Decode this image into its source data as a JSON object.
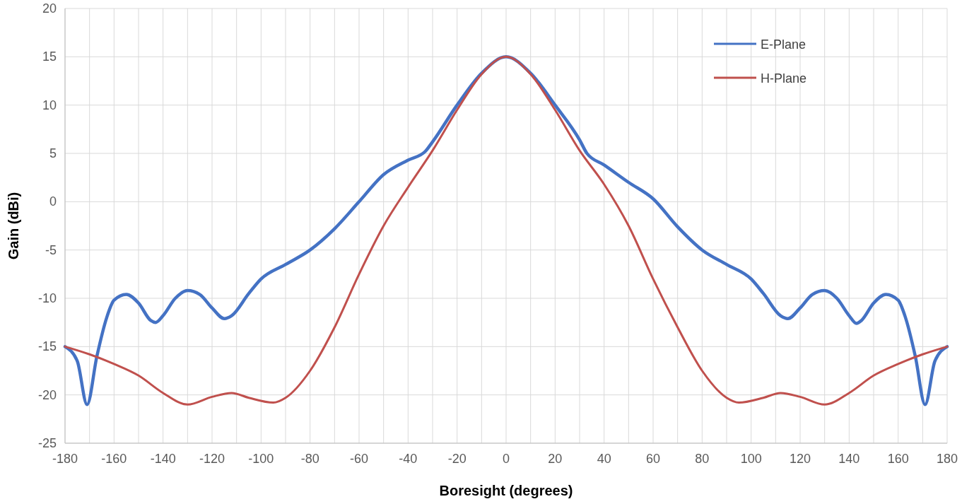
{
  "chart_data": {
    "type": "line",
    "xlabel": "Boresight (degrees)",
    "ylabel": "Gain (dBi)",
    "xlim": [
      -180,
      180
    ],
    "ylim": [
      -25,
      20
    ],
    "xticks": [
      -180,
      {
        "value": -170,
        "label": null
      },
      -160,
      {
        "value": -150,
        "label": null
      },
      -140,
      {
        "value": -130,
        "label": null
      },
      -120,
      {
        "value": -110,
        "label": null
      },
      -100,
      {
        "value": -90,
        "label": null
      },
      -80,
      {
        "value": -70,
        "label": null
      },
      -60,
      {
        "value": -50,
        "label": null
      },
      -40,
      {
        "value": -30,
        "label": null
      },
      -20,
      {
        "value": -10,
        "label": null
      },
      0,
      {
        "value": 10,
        "label": null
      },
      20,
      {
        "value": 30,
        "label": null
      },
      40,
      {
        "value": 50,
        "label": null
      },
      60,
      {
        "value": 70,
        "label": null
      },
      80,
      {
        "value": 90,
        "label": null
      },
      100,
      {
        "value": 110,
        "label": null
      },
      120,
      {
        "value": 130,
        "label": null
      },
      140,
      {
        "value": 150,
        "label": null
      },
      160,
      {
        "value": 170,
        "label": null
      },
      180
    ],
    "yticks": [
      -25,
      -20,
      -15,
      -10,
      -5,
      0,
      5,
      10,
      15,
      20
    ],
    "grid": true,
    "legend": "top right",
    "marker": "none",
    "line_style": "solid",
    "series": [
      {
        "name": "E-Plane",
        "color": "#4472c4",
        "x": [
          -180,
          -175,
          -171,
          -167,
          -163,
          -160,
          -155,
          -150,
          -145,
          -143,
          -140,
          -135,
          -130,
          -125,
          -120,
          -115,
          -112,
          -105,
          -100,
          -90,
          -80,
          -70,
          -60,
          -50,
          -40,
          -33,
          -30,
          -20,
          -10,
          0,
          10,
          20,
          30,
          33,
          40,
          50,
          60,
          70,
          80,
          90,
          100,
          105,
          112,
          115,
          120,
          125,
          130,
          135,
          140,
          143,
          145,
          150,
          155,
          160,
          163,
          167,
          171,
          175,
          180
        ],
        "values": [
          -15,
          -16.5,
          -21,
          -16,
          -12,
          -10.2,
          -9.6,
          -10.5,
          -12.3,
          -12.5,
          -11.8,
          -10,
          -9.2,
          -9.6,
          -11,
          -12.1,
          -11.8,
          -9.5,
          -8,
          -6.5,
          -5,
          -2.8,
          0,
          2.8,
          4.3,
          5.2,
          6.2,
          10,
          13.3,
          15,
          13.3,
          10,
          6.4,
          5,
          3.8,
          2,
          0.3,
          -2.6,
          -5,
          -6.5,
          -8,
          -9.5,
          -11.8,
          -12.1,
          -11,
          -9.6,
          -9.2,
          -10,
          -11.8,
          -12.6,
          -12.3,
          -10.5,
          -9.6,
          -10.2,
          -12,
          -16,
          -21,
          -16.5,
          -15
        ]
      },
      {
        "name": "H-Plane",
        "color": "#c0504d",
        "x": [
          -180,
          -170,
          -160,
          -150,
          -140,
          -130,
          -120,
          -112,
          -105,
          -95,
          -90,
          -80,
          -70,
          -60,
          -50,
          -40,
          -30,
          -20,
          -10,
          0,
          10,
          20,
          30,
          40,
          50,
          60,
          70,
          80,
          90,
          95,
          105,
          112,
          120,
          130,
          140,
          150,
          160,
          170,
          180
        ],
        "values": [
          -15,
          -15.8,
          -16.8,
          -18,
          -19.8,
          -21,
          -20.2,
          -19.8,
          -20.3,
          -20.8,
          -20.3,
          -17.5,
          -13,
          -7.5,
          -2.5,
          1.5,
          5.3,
          9.5,
          13.2,
          15,
          13.2,
          9.5,
          5.3,
          1.8,
          -2.5,
          -8,
          -13,
          -17.5,
          -20.3,
          -20.8,
          -20.3,
          -19.8,
          -20.2,
          -21,
          -19.8,
          -18,
          -16.8,
          -15.8,
          -15
        ]
      }
    ]
  }
}
